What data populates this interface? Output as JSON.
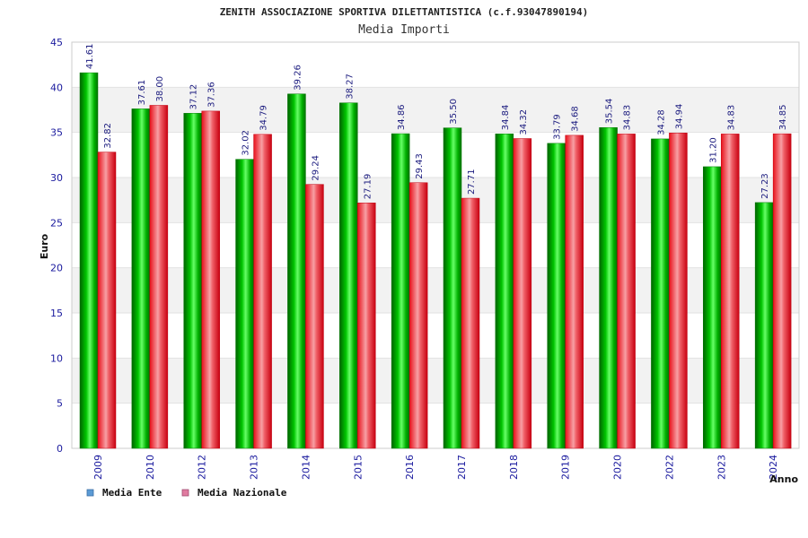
{
  "chart_data": {
    "type": "bar",
    "title": "ZENITH ASSOCIAZIONE SPORTIVA DILETTANTISTICA (c.f.93047890194)",
    "subtitle": "Media Importi",
    "xlabel": "Anno",
    "ylabel": "Euro",
    "ylim": [
      0,
      45
    ],
    "yticks": [
      0,
      5,
      10,
      15,
      20,
      25,
      30,
      35,
      40,
      45
    ],
    "grid": true,
    "legend_position": "bottom-left",
    "categories": [
      "2009",
      "2010",
      "2012",
      "2013",
      "2014",
      "2015",
      "2016",
      "2017",
      "2018",
      "2019",
      "2020",
      "2022",
      "2023",
      "2024"
    ],
    "series": [
      {
        "name": "Media Ente",
        "legend_color": "#5b9bd5",
        "bar_color": "#00b000",
        "values": [
          41.61,
          37.61,
          37.12,
          32.02,
          39.26,
          38.27,
          34.86,
          35.5,
          34.84,
          33.79,
          35.54,
          34.28,
          31.2,
          27.23
        ],
        "labels": [
          "41.61",
          "37.61",
          "37.12",
          "32.02",
          "39.26",
          "38.27",
          "34.86",
          "35.50",
          "34.84",
          "33.79",
          "35.54",
          "34.28",
          "31.20",
          "27.23"
        ]
      },
      {
        "name": "Media Nazionale",
        "legend_color": "#e07ba0",
        "bar_color": "#e8101a",
        "values": [
          32.82,
          38.0,
          37.36,
          34.79,
          29.24,
          27.19,
          29.43,
          27.71,
          34.32,
          34.68,
          34.83,
          34.94,
          34.83,
          34.85
        ],
        "labels": [
          "32.82",
          "38.00",
          "37.36",
          "34.79",
          "29.24",
          "27.19",
          "29.43",
          "27.71",
          "34.32",
          "34.68",
          "34.83",
          "34.94",
          "34.83",
          "34.85"
        ]
      }
    ]
  }
}
